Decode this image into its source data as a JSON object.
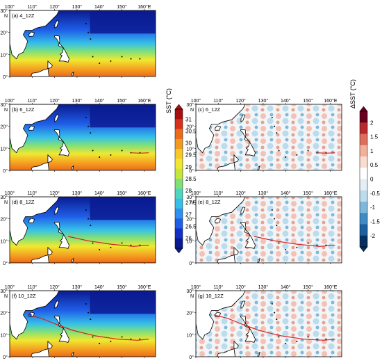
{
  "lon_ticks": [
    "100°",
    "110°",
    "120°",
    "130°",
    "140°",
    "150°",
    "160°E"
  ],
  "lat_ticks": [
    "30°",
    "20°",
    "10°",
    "0°"
  ],
  "lat_north": "N",
  "panels": [
    {
      "label": "(a) 4_12Z",
      "kind": "sst",
      "col": 0,
      "row": 0
    },
    {
      "label": "(b) 6_12Z",
      "kind": "sst",
      "col": 0,
      "row": 1
    },
    {
      "label": "(c) 6_12Z",
      "kind": "diff",
      "col": 1,
      "row": 1
    },
    {
      "label": "(d) 8_12Z",
      "kind": "sst",
      "col": 0,
      "row": 2
    },
    {
      "label": "(e) 8_12Z",
      "kind": "diff",
      "col": 1,
      "row": 2
    },
    {
      "label": "(f) 10_12Z",
      "kind": "sst",
      "col": 0,
      "row": 3
    },
    {
      "label": "(g) 10_12Z",
      "kind": "diff",
      "col": 1,
      "row": 3
    }
  ],
  "sst_colorbar": {
    "title": "SST (°C)",
    "ticks": [
      "31",
      "30.5",
      "30",
      "29.5",
      "29",
      "28.5",
      "28",
      "27.5",
      "27",
      "26.5",
      "26"
    ],
    "colors": [
      "#0a1a90",
      "#1230c8",
      "#1f5fe8",
      "#2e90f0",
      "#36c0e8",
      "#4fd6c0",
      "#7fe07a",
      "#c2e83c",
      "#f0e830",
      "#f8c828",
      "#f49a20",
      "#ec6a18",
      "#d8301a",
      "#a81010"
    ]
  },
  "dsst_colorbar": {
    "title": "ΔSST (°C)",
    "ticks": [
      "2",
      "1.5",
      "1",
      "0.5",
      "0",
      "-0.5",
      "-1",
      "-1.5",
      "-2"
    ],
    "colors": [
      "#053061",
      "#1d5fa0",
      "#3f8cc4",
      "#7fb8da",
      "#bcdcec",
      "#e4eef5",
      "#ffffff",
      "#f9dcd0",
      "#f2b09a",
      "#dc6e5c",
      "#b8282e",
      "#67001f"
    ]
  },
  "tracks": {
    "b": [
      [
        154,
        8
      ],
      [
        158,
        7.8
      ],
      [
        162,
        8
      ]
    ],
    "c": [
      [
        154,
        8
      ],
      [
        158,
        7.8
      ],
      [
        162,
        8
      ]
    ],
    "d": [
      [
        126,
        12
      ],
      [
        135,
        10
      ],
      [
        145,
        8.5
      ],
      [
        155,
        7.5
      ],
      [
        162,
        8
      ]
    ],
    "e": [
      [
        126,
        12
      ],
      [
        135,
        10
      ],
      [
        145,
        8.5
      ],
      [
        155,
        7.5
      ],
      [
        162,
        8
      ]
    ],
    "f": [
      [
        108,
        19
      ],
      [
        114,
        17.5
      ],
      [
        120,
        15
      ],
      [
        128,
        12
      ],
      [
        138,
        9.5
      ],
      [
        148,
        8
      ],
      [
        157,
        7.5
      ],
      [
        162,
        8
      ]
    ],
    "g": [
      [
        108,
        19
      ],
      [
        114,
        17.5
      ],
      [
        120,
        15
      ],
      [
        128,
        12
      ],
      [
        138,
        9.5
      ],
      [
        148,
        8
      ],
      [
        157,
        7.5
      ],
      [
        162,
        8
      ]
    ]
  },
  "track_color": "#d62020",
  "marker_color": "#1a3fd0"
}
